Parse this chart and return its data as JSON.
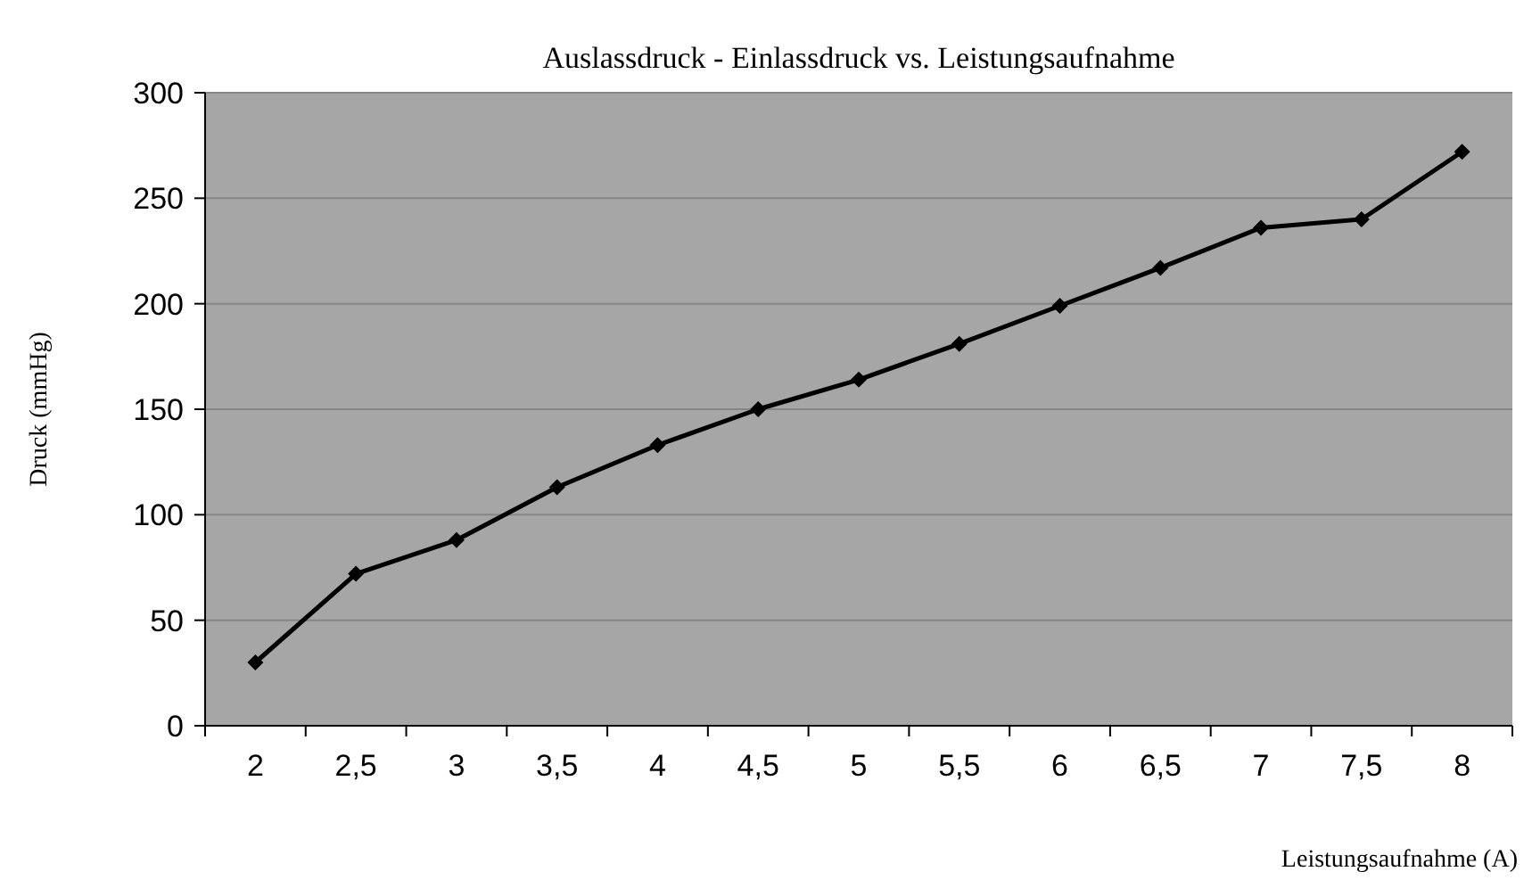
{
  "chart_data": {
    "type": "line",
    "title": "Auslassdruck - Einlassdruck vs. Leistungsaufnahme",
    "xlabel": "Leistungsaufnahme (A)",
    "ylabel": "Druck (mmHg)",
    "categories": [
      "2",
      "2,5",
      "3",
      "3,5",
      "4",
      "4,5",
      "5",
      "5,5",
      "6",
      "6,5",
      "7",
      "7,5",
      "8"
    ],
    "series": [
      {
        "color": "#000000",
        "values": [
          30,
          72,
          88,
          113,
          133,
          150,
          164,
          181,
          199,
          217,
          236,
          240,
          272
        ]
      }
    ],
    "ylim": [
      0,
      300
    ],
    "yticks": [
      0,
      50,
      100,
      150,
      200,
      250,
      300
    ],
    "grid": "y",
    "marker": "diamond",
    "line_style": "solid"
  }
}
